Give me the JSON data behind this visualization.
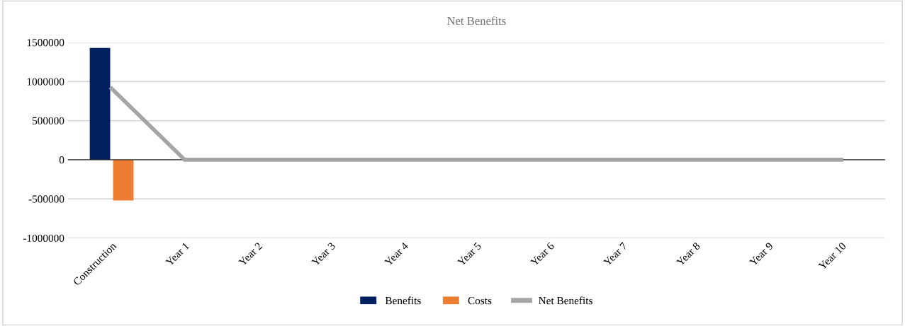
{
  "chart_data": {
    "type": "bar",
    "title": "Net Benefits",
    "categories": [
      "Construction",
      "Year 1",
      "Year 2",
      "Year 3",
      "Year 4",
      "Year 5",
      "Year 6",
      "Year 7",
      "Year 8",
      "Year 9",
      "Year 10"
    ],
    "series": [
      {
        "name": "Benefits",
        "color": "#002060",
        "values": [
          1430000,
          0,
          0,
          0,
          0,
          0,
          0,
          0,
          0,
          0,
          0
        ]
      },
      {
        "name": "Costs",
        "color": "#ed7d31",
        "values": [
          -520000,
          0,
          0,
          0,
          0,
          0,
          0,
          0,
          0,
          0,
          0
        ]
      },
      {
        "name": "Net Benefits",
        "type": "line",
        "color": "#a5a5a5",
        "values": [
          910000,
          0,
          0,
          0,
          0,
          0,
          0,
          0,
          0,
          0,
          0
        ]
      }
    ],
    "ylim": [
      -1000000,
      1500000
    ],
    "yticks": [
      -1000000,
      -500000,
      0,
      500000,
      1000000,
      1500000
    ],
    "grid": "y",
    "legend": "bottom"
  }
}
